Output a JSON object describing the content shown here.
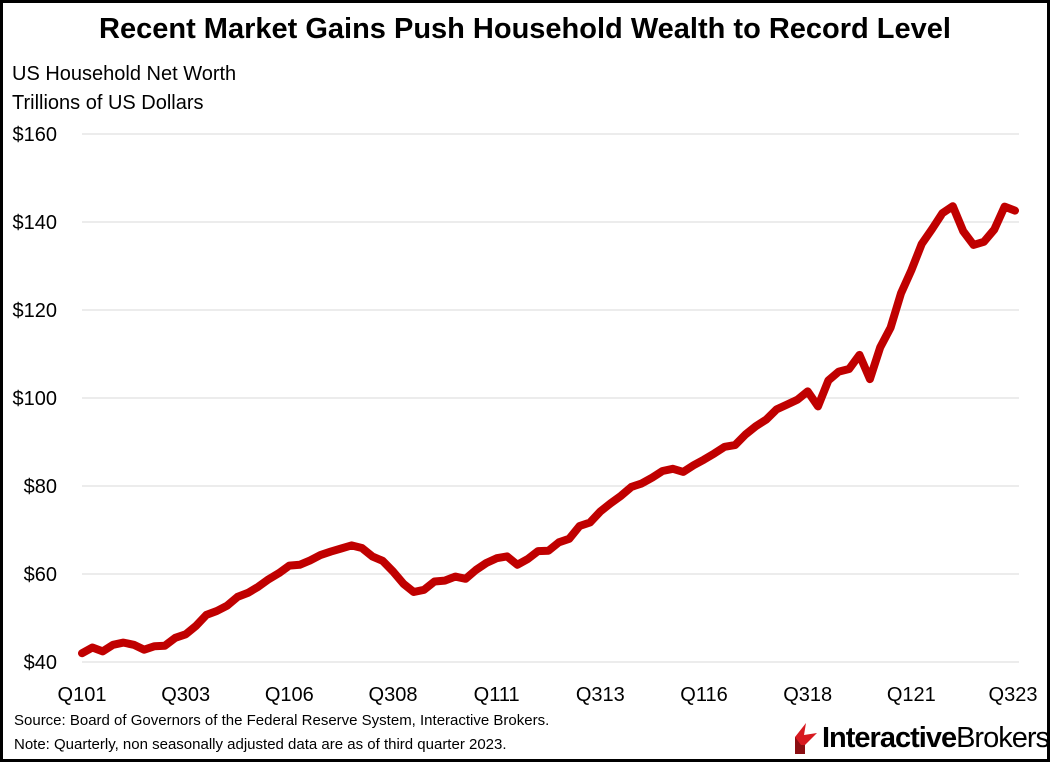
{
  "chart_data": {
    "type": "line",
    "title": "Recent Market Gains Push Household Wealth to Record Level",
    "subtitle": "US Household Net Worth",
    "ylabel": "Trillions of US Dollars",
    "xlabel": "",
    "ylim": [
      40,
      160
    ],
    "yticks": [
      40,
      60,
      80,
      100,
      120,
      140,
      160
    ],
    "ytick_labels": [
      "$40",
      "$60",
      "$80",
      "$100",
      "$120",
      "$140",
      "$160"
    ],
    "xtick_labels": [
      "Q101",
      "Q303",
      "Q106",
      "Q308",
      "Q111",
      "Q313",
      "Q116",
      "Q318",
      "Q121",
      "Q323"
    ],
    "xtick_index": [
      0,
      10,
      20,
      30,
      40,
      50,
      60,
      70,
      80,
      90
    ],
    "grid": true,
    "legend": "none",
    "series": [
      {
        "color": "#c00000",
        "values": [
          42.0,
          43.3,
          42.4,
          43.9,
          44.4,
          43.9,
          42.8,
          43.6,
          43.7,
          45.5,
          46.3,
          48.2,
          50.7,
          51.6,
          52.8,
          54.8,
          55.7,
          57.1,
          58.8,
          60.2,
          61.9,
          62.1,
          63.1,
          64.3,
          65.1,
          65.8,
          66.5,
          65.9,
          64.0,
          63.0,
          60.6,
          57.8,
          55.9,
          56.4,
          58.3,
          58.5,
          59.4,
          58.9,
          60.9,
          62.5,
          63.6,
          64.0,
          62.1,
          63.4,
          65.2,
          65.3,
          67.2,
          68.0,
          70.9,
          71.7,
          74.2,
          76.1,
          77.8,
          79.8,
          80.6,
          81.9,
          83.4,
          83.9,
          83.2,
          84.7,
          86.0,
          87.4,
          88.9,
          89.3,
          91.7,
          93.6,
          95.1,
          97.4,
          98.5,
          99.6,
          101.5,
          98.1,
          104.0,
          106.0,
          106.6,
          109.8,
          104.3,
          111.5,
          116.0,
          123.8,
          129.0,
          135.0,
          138.4,
          142.0,
          143.6,
          137.9,
          134.8,
          135.5,
          138.3,
          143.5,
          142.6
        ]
      }
    ]
  },
  "footer": {
    "source": "Source: Board of Governors of the Federal Reserve System, Interactive Brokers.",
    "note": "Note: Quarterly, non seasonally adjusted data are as of third quarter 2023."
  },
  "brand": {
    "logo_text_bold": "Interactive",
    "logo_text_regular": "Brokers",
    "logo_color": "#d71920"
  }
}
